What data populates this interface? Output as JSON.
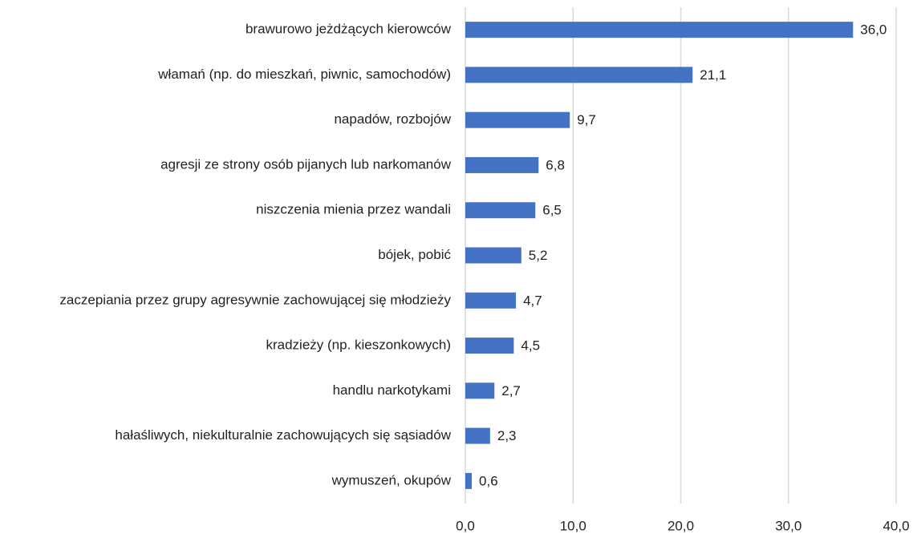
{
  "chart_data": {
    "type": "barh",
    "categories": [
      "brawurowo jeżdżących kierowców",
      "włamań (np. do mieszkań, piwnic, samochodów)",
      "napadów, rozbojów",
      "agresji ze strony osób pijanych lub narkomanów",
      "niszczenia mienia przez wandali",
      "bójek, pobić",
      "zaczepiania przez grupy agresywnie zachowującej się młodzieży",
      "kradzieży (np. kieszonkowych)",
      "handlu narkotykami",
      "hałaśliwych, niekulturalnie zachowujących się sąsiadów",
      "wymuszeń, okupów"
    ],
    "values": [
      36.0,
      21.1,
      9.7,
      6.8,
      6.5,
      5.2,
      4.7,
      4.5,
      2.7,
      2.3,
      0.6
    ],
    "value_labels": [
      "36,0",
      "21,1",
      "9,7",
      "6,8",
      "6,5",
      "5,2",
      "4,7",
      "4,5",
      "2,7",
      "2,3",
      "0,6"
    ],
    "color": "#4472c4",
    "xlim": [
      0,
      40
    ],
    "xticks": [
      {
        "value": 0,
        "label": "0,0"
      },
      {
        "value": 10,
        "label": "10,0"
      },
      {
        "value": 20,
        "label": "20,0"
      },
      {
        "value": 30,
        "label": "30,0"
      },
      {
        "value": 40,
        "label": "40,0"
      }
    ],
    "grid": true
  }
}
